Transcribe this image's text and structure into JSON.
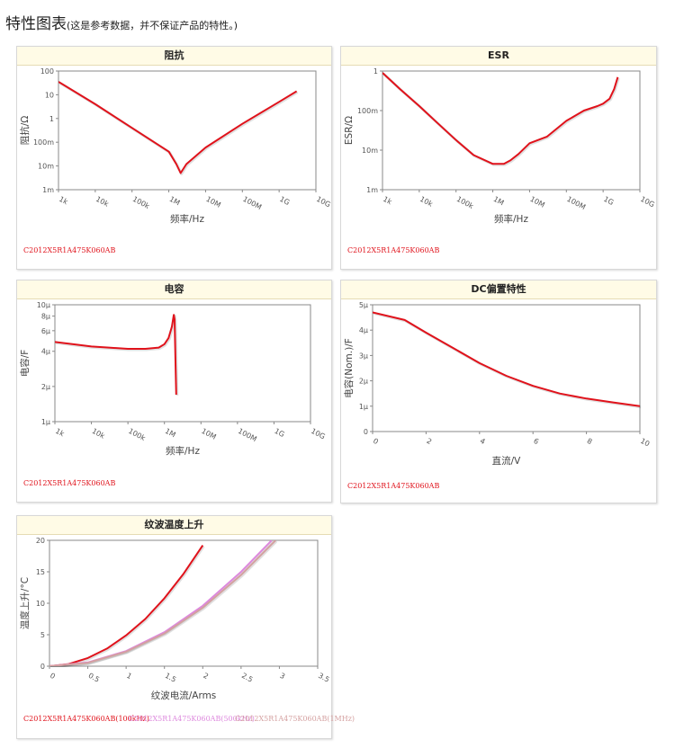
{
  "page": {
    "title": "特性图表",
    "note": "(这是参考数据，并不保证产品的特性。)"
  },
  "colors": {
    "main": "#e0121b",
    "series_500khz": "#dd88dd",
    "series_1mhz": "#d4a0a0",
    "header_bg": "#fffbe6",
    "plot_border": "#888888"
  },
  "chart_data": [
    {
      "id": "impedance",
      "type": "line",
      "title": "阻抗",
      "xlabel": "频率/Hz",
      "ylabel": "阻抗/Ω",
      "xscale": "log",
      "yscale": "log",
      "xlim": [
        1000,
        10000000000
      ],
      "ylim": [
        0.001,
        100
      ],
      "xticks": [
        1000,
        10000,
        100000,
        1000000,
        10000000,
        100000000,
        1000000000,
        10000000000
      ],
      "xtick_labels": [
        "1k",
        "10k",
        "100k",
        "1M",
        "10M",
        "100M",
        "1G",
        "10G"
      ],
      "yticks": [
        0.001,
        0.01,
        0.1,
        1,
        10,
        100
      ],
      "ytick_labels": [
        "1m",
        "10m",
        "100m",
        "1",
        "10",
        "100"
      ],
      "grid": false,
      "legend_position": "bottom-left",
      "series": [
        {
          "name": "C2012X5R1A475K060AB",
          "color": "#e0121b",
          "x": [
            1000,
            10000,
            100000,
            1000000,
            1600000,
            2100000,
            3000000,
            10000000,
            100000000,
            1000000000,
            3000000000
          ],
          "y": [
            35,
            4,
            0.4,
            0.04,
            0.012,
            0.005,
            0.012,
            0.06,
            0.6,
            5,
            14
          ]
        }
      ]
    },
    {
      "id": "esr",
      "type": "line",
      "title": "ESR",
      "xlabel": "频率/Hz",
      "ylabel": "ESR/Ω",
      "xscale": "log",
      "yscale": "log",
      "xlim": [
        1000,
        10000000000
      ],
      "ylim": [
        0.001,
        1
      ],
      "xticks": [
        1000,
        10000,
        100000,
        1000000,
        10000000,
        100000000,
        1000000000,
        10000000000
      ],
      "xtick_labels": [
        "1k",
        "10k",
        "100k",
        "1M",
        "10M",
        "100M",
        "1G",
        "10G"
      ],
      "yticks": [
        0.001,
        0.01,
        0.1,
        1
      ],
      "ytick_labels": [
        "1m",
        "10m",
        "100m",
        "1"
      ],
      "grid": false,
      "legend_position": "bottom-left",
      "series": [
        {
          "name": "C2012X5R1A475K060AB",
          "color": "#e0121b",
          "x": [
            1000,
            3000,
            10000,
            30000,
            100000,
            300000,
            1000000,
            2000000,
            3000000,
            5000000,
            10000000,
            30000000,
            100000000,
            300000000,
            700000000,
            1000000000,
            1500000000,
            2000000000,
            2500000000
          ],
          "y": [
            0.9,
            0.35,
            0.13,
            0.05,
            0.018,
            0.0075,
            0.0045,
            0.0045,
            0.0055,
            0.008,
            0.015,
            0.022,
            0.055,
            0.1,
            0.13,
            0.15,
            0.2,
            0.35,
            0.7
          ]
        }
      ]
    },
    {
      "id": "capacitance",
      "type": "line",
      "title": "电容",
      "xlabel": "频率/Hz",
      "ylabel": "电容/F",
      "xscale": "log",
      "yscale": "log",
      "xlim": [
        1000,
        10000000000
      ],
      "ylim": [
        1e-06,
        1e-05
      ],
      "xticks": [
        1000,
        10000,
        100000,
        1000000,
        10000000,
        100000000,
        1000000000,
        10000000000
      ],
      "xtick_labels": [
        "1k",
        "10k",
        "100k",
        "1M",
        "10M",
        "100M",
        "1G",
        "10G"
      ],
      "yticks": [
        1e-06,
        2e-06,
        4e-06,
        6e-06,
        8e-06,
        1e-05
      ],
      "ytick_labels": [
        "1μ",
        "2μ",
        "4μ",
        "6μ",
        "8μ",
        "10μ"
      ],
      "grid": false,
      "legend_position": "bottom-left",
      "series": [
        {
          "name": "C2012X5R1A475K060AB",
          "color": "#e0121b",
          "x": [
            1000,
            3000,
            10000,
            30000,
            100000,
            300000,
            700000,
            1000000,
            1300000,
            1600000,
            1800000,
            1900000,
            2000000,
            2100000
          ],
          "y": [
            4.8e-06,
            4.6e-06,
            4.4e-06,
            4.3e-06,
            4.2e-06,
            4.2e-06,
            4.3e-06,
            4.6e-06,
            5.2e-06,
            6.5e-06,
            8.2e-06,
            7.5e-06,
            3.5e-06,
            1.7e-06
          ]
        }
      ]
    },
    {
      "id": "dc_bias",
      "type": "line",
      "title": "DC偏置特性",
      "xlabel": "直流/V",
      "ylabel": "电容(Nom.)/F",
      "xscale": "linear",
      "yscale": "linear",
      "xlim": [
        0,
        10
      ],
      "ylim": [
        0,
        5e-06
      ],
      "xticks": [
        0,
        2,
        4,
        6,
        8,
        10
      ],
      "xtick_labels": [
        "0",
        "2",
        "4",
        "6",
        "8",
        "10"
      ],
      "yticks": [
        0,
        1e-06,
        2e-06,
        3e-06,
        4e-06,
        5e-06
      ],
      "ytick_labels": [
        "0",
        "1μ",
        "2μ",
        "3μ",
        "4μ",
        "5μ"
      ],
      "grid": false,
      "legend_position": "bottom-left",
      "series": [
        {
          "name": "C2012X5R1A475K060AB",
          "color": "#e0121b",
          "x": [
            0,
            1.2,
            2,
            3,
            4,
            5,
            6,
            7,
            8,
            9,
            10
          ],
          "y": [
            4.7e-06,
            4.4e-06,
            3.9e-06,
            3.3e-06,
            2.7e-06,
            2.2e-06,
            1.8e-06,
            1.5e-06,
            1.3e-06,
            1.15e-06,
            1e-06
          ]
        }
      ]
    },
    {
      "id": "ripple",
      "type": "line",
      "title": "纹波温度上升",
      "xlabel": "纹波电流/Arms",
      "ylabel": "温度上升/°C",
      "xscale": "linear",
      "yscale": "linear",
      "xlim": [
        0,
        3.5
      ],
      "ylim": [
        0,
        20
      ],
      "xticks": [
        0,
        0.5,
        1,
        1.5,
        2,
        2.5,
        3,
        3.5
      ],
      "xtick_labels": [
        "0",
        "0.5",
        "1",
        "1.5",
        "2",
        "2.5",
        "3",
        "3.5"
      ],
      "yticks": [
        0,
        5,
        10,
        15,
        20
      ],
      "ytick_labels": [
        "0",
        "5",
        "10",
        "15",
        "20"
      ],
      "grid": false,
      "legend_position": "bottom",
      "series": [
        {
          "name": "C2012X5R1A475K060AB(100kHz)",
          "color": "#e0121b",
          "x": [
            0,
            0.25,
            0.5,
            0.75,
            1,
            1.25,
            1.5,
            1.75,
            2.0
          ],
          "y": [
            0,
            0.35,
            1.3,
            2.8,
            4.9,
            7.5,
            10.8,
            14.7,
            19.2
          ]
        },
        {
          "name": "C2012X5R1A475K060AB(500kHz)",
          "color": "#dd88dd",
          "x": [
            0,
            0.5,
            1,
            1.5,
            2,
            2.5,
            2.9
          ],
          "y": [
            0,
            0.6,
            2.4,
            5.4,
            9.6,
            15,
            20
          ]
        },
        {
          "name": "C2012X5R1A475K060AB(1MHz)",
          "color": "#d4a0a0",
          "x": [
            0,
            0.5,
            1,
            1.5,
            2,
            2.5,
            2.95
          ],
          "y": [
            0,
            0.55,
            2.3,
            5.2,
            9.3,
            14.5,
            20
          ]
        }
      ]
    }
  ]
}
